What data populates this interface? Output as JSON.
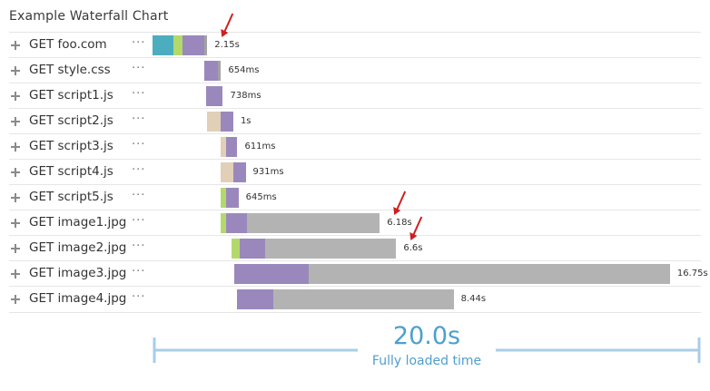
{
  "chart_data": {
    "type": "bar",
    "title": "Example Waterfall Chart",
    "x_unit": "s",
    "xlim": [
      0,
      20.0
    ],
    "grid": false,
    "legend": "none",
    "colors": {
      "dns": "#4cadbf",
      "connect": "#b4d96b",
      "ttfb": "#e2cfb8",
      "download": "#9a88bd",
      "blocked": "#b3b3b3",
      "tail": "#a3a3a3",
      "arrow": "#cc1f1f",
      "accent": "#4e9fcf",
      "span_line": "#a9cde6"
    },
    "requests": [
      {
        "label": "GET foo.com",
        "duration": "2.15s",
        "segments": [
          {
            "kind": "dns",
            "start": 0.0,
            "end": 0.75
          },
          {
            "kind": "connect",
            "start": 0.75,
            "end": 1.1
          },
          {
            "kind": "download",
            "start": 1.1,
            "end": 1.9
          },
          {
            "kind": "tail",
            "start": 1.9,
            "end": 2.0
          }
        ]
      },
      {
        "label": "GET style.css",
        "duration": "654ms",
        "segments": [
          {
            "kind": "download",
            "start": 1.9,
            "end": 2.38
          },
          {
            "kind": "tail",
            "start": 2.38,
            "end": 2.5
          }
        ]
      },
      {
        "label": "GET script1.js",
        "duration": "738ms",
        "segments": [
          {
            "kind": "download",
            "start": 1.95,
            "end": 2.57
          }
        ]
      },
      {
        "label": "GET script2.js",
        "duration": "1s",
        "segments": [
          {
            "kind": "ttfb",
            "start": 2.0,
            "end": 2.5
          },
          {
            "kind": "download",
            "start": 2.5,
            "end": 2.95
          }
        ]
      },
      {
        "label": "GET script3.js",
        "duration": "611ms",
        "segments": [
          {
            "kind": "ttfb",
            "start": 2.5,
            "end": 2.67
          },
          {
            "kind": "download",
            "start": 2.67,
            "end": 3.1
          }
        ]
      },
      {
        "label": "GET script4.js",
        "duration": "931ms",
        "segments": [
          {
            "kind": "ttfb",
            "start": 2.5,
            "end": 2.95
          },
          {
            "kind": "download",
            "start": 2.95,
            "end": 3.4
          }
        ]
      },
      {
        "label": "GET script5.js",
        "duration": "645ms",
        "segments": [
          {
            "kind": "connect",
            "start": 2.5,
            "end": 2.68
          },
          {
            "kind": "download",
            "start": 2.68,
            "end": 3.14
          }
        ]
      },
      {
        "label": "GET image1.jpg",
        "duration": "6.18s",
        "segments": [
          {
            "kind": "connect",
            "start": 2.5,
            "end": 2.68
          },
          {
            "kind": "download",
            "start": 2.68,
            "end": 3.45
          },
          {
            "kind": "blocked",
            "start": 3.45,
            "end": 8.3
          }
        ]
      },
      {
        "label": "GET image2.jpg",
        "duration": "6.6s",
        "segments": [
          {
            "kind": "connect",
            "start": 2.9,
            "end": 3.2
          },
          {
            "kind": "download",
            "start": 3.2,
            "end": 4.1
          },
          {
            "kind": "blocked",
            "start": 4.1,
            "end": 8.9
          }
        ]
      },
      {
        "label": "GET image3.jpg",
        "duration": "16.75s",
        "segments": [
          {
            "kind": "download",
            "start": 2.98,
            "end": 5.7
          },
          {
            "kind": "blocked",
            "start": 5.7,
            "end": 18.9
          }
        ]
      },
      {
        "label": "GET image4.jpg",
        "duration": "8.44s",
        "segments": [
          {
            "kind": "download",
            "start": 3.1,
            "end": 4.4
          },
          {
            "kind": "blocked",
            "start": 4.4,
            "end": 11.0
          }
        ]
      }
    ],
    "highlighted": [
      "GET foo.com",
      "GET image1.jpg",
      "GET image2.jpg"
    ],
    "total": {
      "value": "20.0s",
      "caption": "Fully loaded time"
    }
  }
}
